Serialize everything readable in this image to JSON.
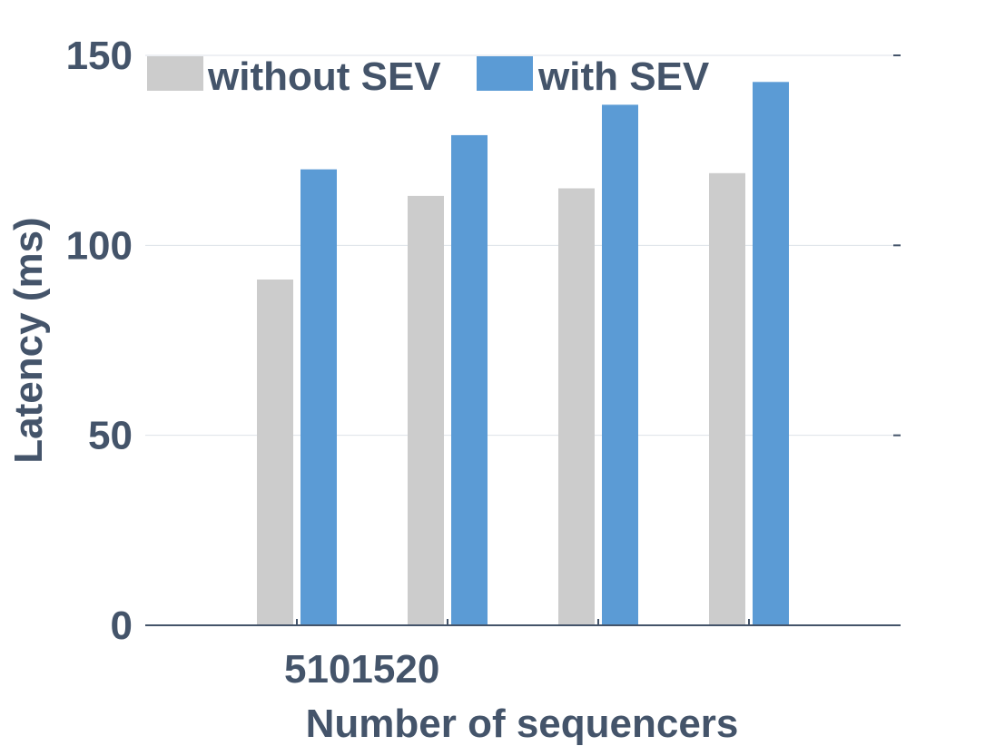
{
  "chart_data": {
    "type": "bar",
    "categories": [
      "5",
      "10",
      "15",
      "20"
    ],
    "x_tick_text": "5101520",
    "series": [
      {
        "name": "without SEV",
        "values": [
          91,
          113,
          115,
          119
        ],
        "color": "#cccccc"
      },
      {
        "name": "with SEV",
        "values": [
          120,
          129,
          137,
          143
        ],
        "color": "#5b9bd5"
      }
    ],
    "xlabel": "Number of sequencers",
    "ylabel": "Latency (ms)",
    "ylim": [
      0,
      150
    ],
    "yticks": [
      0,
      50,
      100,
      150
    ],
    "grid": true,
    "legend_position": "top"
  }
}
